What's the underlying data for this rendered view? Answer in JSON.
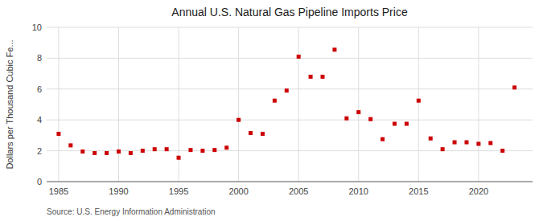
{
  "chart_data": {
    "type": "scatter",
    "title": "Annual U.S. Natural Gas Pipeline Imports Price",
    "ylabel": "Dollars per Thousand Cubic Fe...",
    "source": "Source: U.S. Energy Information Administration",
    "x": [
      1985,
      1986,
      1987,
      1988,
      1989,
      1990,
      1991,
      1992,
      1993,
      1994,
      1995,
      1996,
      1997,
      1998,
      1999,
      2000,
      2001,
      2002,
      2003,
      2004,
      2005,
      2006,
      2007,
      2008,
      2009,
      2010,
      2011,
      2012,
      2013,
      2014,
      2015,
      2016,
      2017,
      2018,
      2019,
      2020,
      2021,
      2022,
      2023
    ],
    "values": [
      3.1,
      2.35,
      1.95,
      1.85,
      1.85,
      1.95,
      1.85,
      2.0,
      2.1,
      2.1,
      1.55,
      2.05,
      2.0,
      2.05,
      2.2,
      4.0,
      3.15,
      3.1,
      5.25,
      5.9,
      8.1,
      6.8,
      6.8,
      8.55,
      4.1,
      4.5,
      4.05,
      2.75,
      3.75,
      3.75,
      5.25,
      2.8,
      2.1,
      2.55,
      2.55,
      2.45,
      2.5,
      2.0,
      6.1
    ],
    "color": "#cc0000",
    "marker": "square",
    "xlim": [
      1984.0,
      2024.5
    ],
    "ylim": [
      0,
      10
    ],
    "xticks": [
      1985,
      1990,
      1995,
      2000,
      2005,
      2010,
      2015,
      2020
    ],
    "yticks": [
      0,
      2,
      4,
      6,
      8,
      10
    ],
    "grid": true
  }
}
